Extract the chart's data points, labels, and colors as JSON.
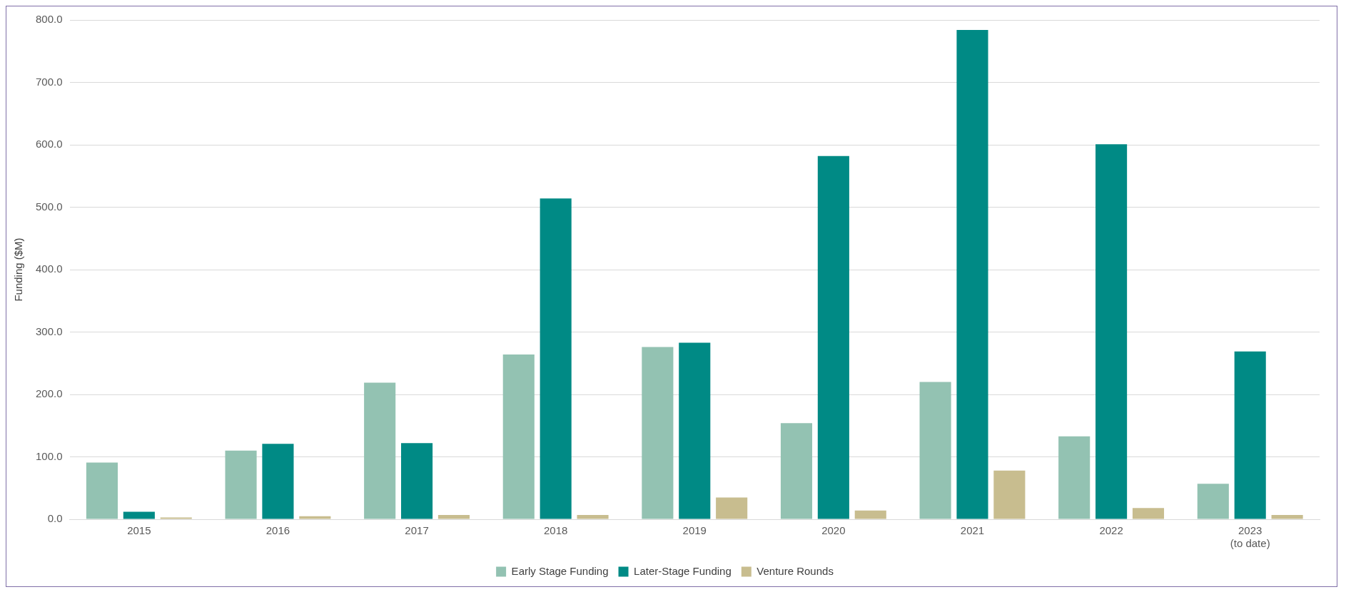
{
  "chart_data": {
    "type": "bar",
    "ylabel": "Funding ($M)",
    "categories": [
      "2015",
      "2016",
      "2017",
      "2018",
      "2019",
      "2020",
      "2021",
      "2022",
      "2023\n(to date)"
    ],
    "series": [
      {
        "name": "Early Stage Funding",
        "color": "#93c2b2",
        "values": [
          91,
          110,
          219,
          264,
          276,
          154,
          220,
          133,
          57
        ]
      },
      {
        "name": "Later-Stage Funding",
        "color": "#008a85",
        "values": [
          12,
          121,
          122,
          514,
          283,
          582,
          784,
          601,
          269
        ]
      },
      {
        "name": "Venture Rounds",
        "color": "#c8bd8f",
        "values": [
          3,
          5,
          7,
          7,
          35,
          14,
          78,
          18,
          7
        ]
      }
    ],
    "ylim": [
      0,
      800
    ],
    "yticks": [
      {
        "value": 0,
        "label": "0.0"
      },
      {
        "value": 100,
        "label": "100.0"
      },
      {
        "value": 200,
        "label": "200.0"
      },
      {
        "value": 300,
        "label": "300.0"
      },
      {
        "value": 400,
        "label": "400.0"
      },
      {
        "value": 500,
        "label": "500.0"
      },
      {
        "value": 600,
        "label": "600.0"
      },
      {
        "value": 700,
        "label": "700.0"
      },
      {
        "value": 800,
        "label": "800.0"
      }
    ],
    "grid": "y",
    "legend": "bottom"
  }
}
